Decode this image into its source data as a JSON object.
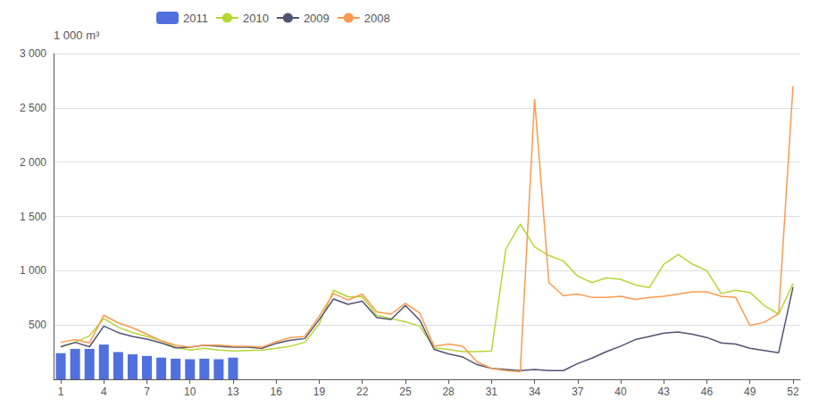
{
  "chart_data": {
    "type": "line",
    "ylabel": "1 000 m³",
    "x": [
      1,
      2,
      3,
      4,
      5,
      6,
      7,
      8,
      9,
      10,
      11,
      12,
      13,
      14,
      15,
      16,
      17,
      18,
      19,
      20,
      21,
      22,
      23,
      24,
      25,
      26,
      27,
      28,
      29,
      30,
      31,
      32,
      33,
      34,
      35,
      36,
      37,
      38,
      39,
      40,
      41,
      42,
      43,
      44,
      45,
      46,
      47,
      48,
      49,
      50,
      51,
      52
    ],
    "series": [
      {
        "name": "2011",
        "type": "bar",
        "values": [
          240,
          280,
          280,
          320,
          250,
          230,
          215,
          200,
          190,
          185,
          190,
          185,
          200,
          null,
          null,
          null,
          null,
          null,
          null,
          null,
          null,
          null,
          null,
          null,
          null,
          null,
          null,
          null,
          null,
          null,
          null,
          null,
          null,
          null,
          null,
          null,
          null,
          null,
          null,
          null,
          null,
          null,
          null,
          null,
          null,
          null,
          null,
          null,
          null,
          null,
          null,
          null
        ]
      },
      {
        "name": "2010",
        "type": "line",
        "values": [
          300,
          340,
          400,
          560,
          480,
          430,
          395,
          355,
          295,
          270,
          285,
          270,
          260,
          265,
          270,
          285,
          305,
          340,
          510,
          820,
          760,
          760,
          590,
          560,
          530,
          490,
          290,
          275,
          255,
          255,
          260,
          1200,
          1430,
          1220,
          1140,
          1090,
          950,
          890,
          935,
          920,
          870,
          845,
          1060,
          1150,
          1060,
          1000,
          790,
          820,
          800,
          680,
          600,
          880
        ]
      },
      {
        "name": "2009",
        "type": "line",
        "values": [
          300,
          340,
          300,
          490,
          430,
          395,
          370,
          335,
          290,
          295,
          315,
          305,
          295,
          295,
          285,
          330,
          360,
          375,
          550,
          740,
          690,
          720,
          570,
          550,
          680,
          545,
          275,
          235,
          205,
          135,
          100,
          90,
          80,
          90,
          80,
          80,
          145,
          195,
          255,
          305,
          365,
          395,
          425,
          435,
          415,
          385,
          335,
          325,
          285,
          265,
          245,
          850
        ]
      },
      {
        "name": "2008",
        "type": "line",
        "values": [
          340,
          365,
          335,
          590,
          520,
          475,
          415,
          355,
          315,
          295,
          315,
          315,
          305,
          305,
          295,
          345,
          385,
          395,
          580,
          790,
          730,
          785,
          620,
          600,
          700,
          610,
          305,
          325,
          305,
          160,
          100,
          80,
          70,
          2580,
          890,
          770,
          785,
          755,
          755,
          765,
          735,
          755,
          765,
          785,
          805,
          805,
          765,
          755,
          495,
          525,
          605,
          2700
        ]
      }
    ],
    "xlim": [
      0.5,
      52.5
    ],
    "xticks": [
      1,
      4,
      7,
      10,
      13,
      16,
      19,
      22,
      25,
      28,
      31,
      34,
      37,
      40,
      43,
      46,
      49,
      52
    ],
    "ylim": [
      0,
      3000
    ],
    "yticks": [
      500,
      {
        "value": 1000,
        "label": "1 000"
      },
      {
        "value": 1500,
        "label": "1 500"
      },
      {
        "value": 2000,
        "label": "2 000"
      },
      {
        "value": 2500,
        "label": "2 500"
      },
      {
        "value": 3000,
        "label": "3 000"
      }
    ],
    "grid": true,
    "legend": "upper left"
  }
}
